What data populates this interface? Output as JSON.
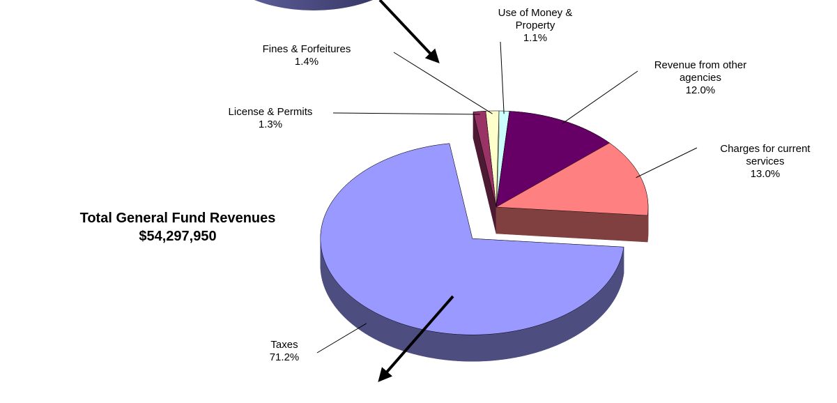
{
  "chart_data": {
    "type": "pie3d",
    "categories": [
      "Charges for current services",
      "Revenue from other agencies",
      "Use of Money & Property",
      "Fines & Forfeitures",
      "License & Permits",
      "Taxes"
    ],
    "values": [
      13.0,
      12.0,
      1.1,
      1.4,
      1.3,
      71.2
    ],
    "value_labels": [
      "13.0%",
      "12.0%",
      "1.1%",
      "1.4%",
      "1.3%",
      "71.2%"
    ],
    "colors": [
      "#ff8080",
      "#660066",
      "#ccffff",
      "#ffffcc",
      "#993366",
      "#9999ff"
    ],
    "annotation": [
      "Total General Fund Revenues",
      "$54,297,950"
    ]
  }
}
